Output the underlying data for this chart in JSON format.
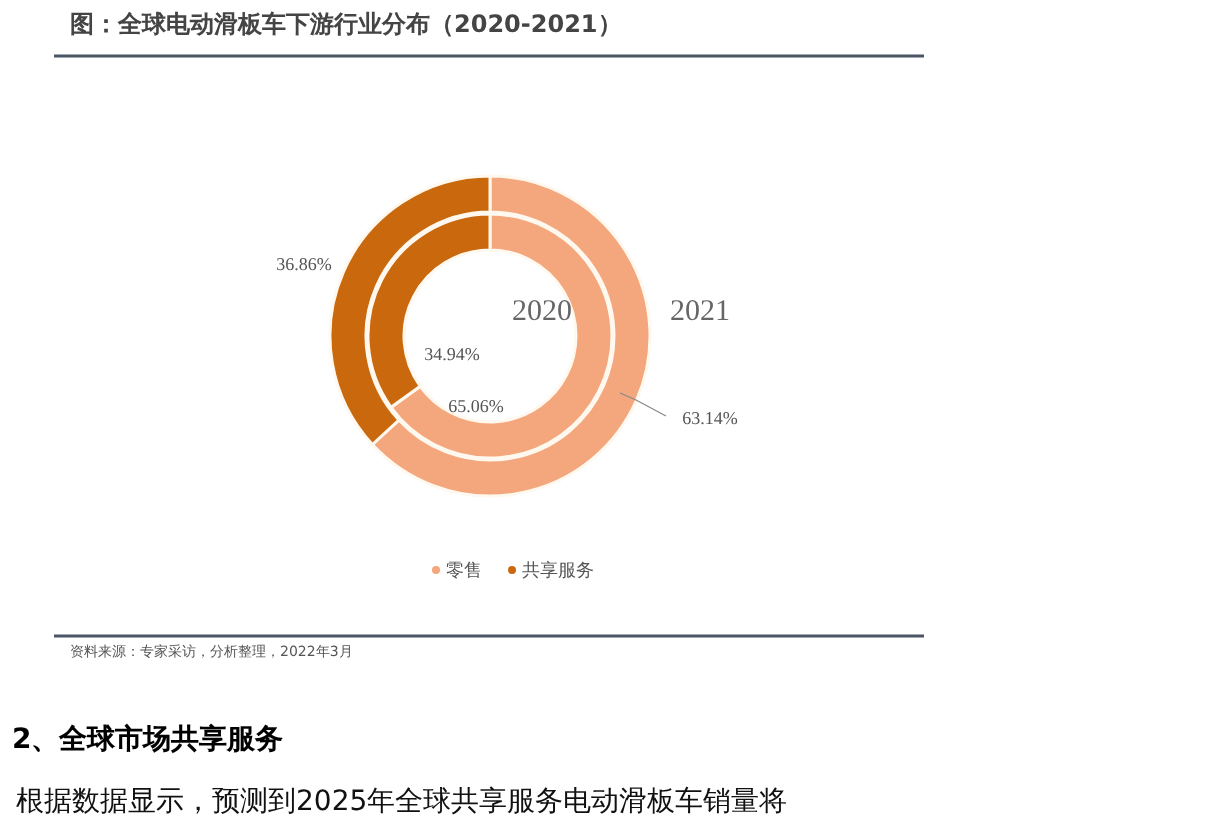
{
  "chart_data": {
    "type": "donut",
    "title": "图：全球电动滑板车下游行业分布（2020-2021）",
    "categories": [
      "零售",
      "共享服务"
    ],
    "colors": [
      "#f4a67c",
      "#c9680c"
    ],
    "series": [
      {
        "name": "2020",
        "values": [
          65.06,
          34.94
        ],
        "value_labels": [
          "65.06%",
          "34.94%"
        ]
      },
      {
        "name": "2021",
        "values": [
          63.14,
          36.86
        ],
        "value_labels": [
          "63.14%",
          "36.86%"
        ]
      }
    ],
    "legend": "bottom",
    "annotations": [
      "资料来源：专家采访，分析整理，2022年3月",
      "2、全球市场共享服务",
      "根据数据显示，预测到2025年全球共享服务电动滑板车销量将"
    ]
  }
}
